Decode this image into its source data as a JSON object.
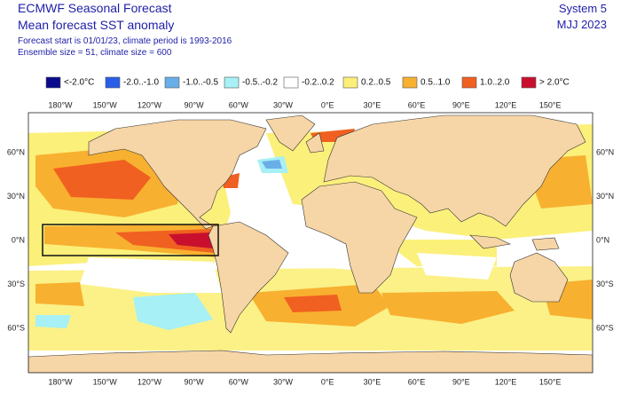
{
  "header": {
    "title": "ECMWF Seasonal Forecast",
    "subtitle": "Mean forecast SST anomaly",
    "lines": [
      "Forecast start is 01/01/23, climate period is 1993-2016",
      "Ensemble size = 51, climate size = 600"
    ]
  },
  "top_right": [
    "System 5",
    "MJJ 2023"
  ],
  "legend": [
    {
      "label": "<-2.0°C",
      "color": "#0a0a8c"
    },
    {
      "label": "-2.0..-1.0",
      "color": "#2a5ee8"
    },
    {
      "label": "-1.0..-0.5",
      "color": "#6aaee8"
    },
    {
      "label": "-0.5..-0.2",
      "color": "#a6f0f6"
    },
    {
      "label": "-0.2..0.2",
      "color": "#ffffff"
    },
    {
      "label": "0.2..0.5",
      "color": "#fbf07a"
    },
    {
      "label": "0.5..1.0",
      "color": "#f8b030"
    },
    {
      "label": "1.0..2.0",
      "color": "#f06020"
    },
    {
      "label": "> 2.0°C",
      "color": "#c8102e"
    }
  ],
  "map": {
    "lon_labels": [
      "180°W",
      "150°W",
      "120°W",
      "90°W",
      "60°W",
      "30°W",
      "0°E",
      "30°E",
      "60°E",
      "90°E",
      "120°E",
      "150°E"
    ],
    "lat_labels": [
      "60°N",
      "30°N",
      "0°N",
      "30°S",
      "60°S"
    ]
  }
}
